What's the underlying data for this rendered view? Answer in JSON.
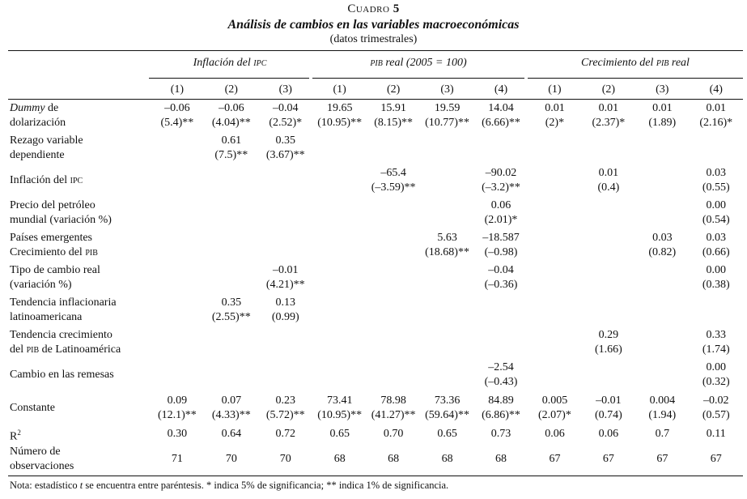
{
  "title": {
    "label": "Cuadro",
    "number": "5",
    "subtitle": "Análisis de cambios en las variables macroeconómicas",
    "frequency": "(datos trimestrales)"
  },
  "groups": [
    {
      "pre": "Inflación del ",
      "sc": "ipc",
      "post": ""
    },
    {
      "pre": "",
      "sc": "pib",
      "post": " real (2005 = 100)"
    },
    {
      "pre": "Crecimiento del ",
      "sc": "pib",
      "post": " real"
    }
  ],
  "columns": [
    "(1)",
    "(2)",
    "(3)",
    "(1)",
    "(2)",
    "(3)",
    "(4)",
    "(1)",
    "(2)",
    "(3)",
    "(4)"
  ],
  "rows": [
    {
      "label1_it": "Dummy",
      "label1": " de",
      "label2": "dolarización",
      "coef": [
        "–0.06",
        "–0.06",
        "–0.04",
        "19.65",
        "15.91",
        "19.59",
        "14.04",
        "0.01",
        "0.01",
        "0.01",
        "0.01"
      ],
      "stat": [
        "(5.4)**",
        "(4.04)**",
        "(2.52)*",
        "(10.95)**",
        "(8.15)**",
        "(10.77)**",
        "(6.66)**",
        "(2)*",
        "(2.37)*",
        "(1.89)",
        "(2.16)*"
      ]
    },
    {
      "label1": "Rezago variable",
      "label2": "dependiente",
      "coef": [
        "",
        "0.61",
        "0.35",
        "",
        "",
        "",
        "",
        "",
        "",
        "",
        ""
      ],
      "stat": [
        "",
        "(7.5)**",
        "(3.67)**",
        "",
        "",
        "",
        "",
        "",
        "",
        "",
        ""
      ]
    },
    {
      "label1": "Inflación del ",
      "label1_sc": "ipc",
      "label2": "",
      "coef": [
        "",
        "",
        "",
        "",
        "–65.4",
        "",
        "–90.02",
        "",
        "0.01",
        "",
        "0.03"
      ],
      "stat": [
        "",
        "",
        "",
        "",
        "(–3.59)**",
        "",
        "(–3.2)**",
        "",
        "(0.4)",
        "",
        "(0.55)"
      ]
    },
    {
      "label1": "Precio del petróleo",
      "label2": "mundial (variación %)",
      "coef": [
        "",
        "",
        "",
        "",
        "",
        "",
        "0.06",
        "",
        "",
        "",
        "0.00"
      ],
      "stat": [
        "",
        "",
        "",
        "",
        "",
        "",
        "(2.01)*",
        "",
        "",
        "",
        "(0.54)"
      ]
    },
    {
      "label1": "Países emergentes",
      "label2": "Crecimiento del ",
      "label2_sc": "pib",
      "coef": [
        "",
        "",
        "",
        "",
        "",
        "5.63",
        "–18.587",
        "",
        "",
        "0.03",
        "0.03"
      ],
      "stat": [
        "",
        "",
        "",
        "",
        "",
        "(18.68)**",
        "(–0.98)",
        "",
        "",
        "(0.82)",
        "(0.66)"
      ]
    },
    {
      "label1": "Tipo de cambio real",
      "label2": "(variación %)",
      "coef": [
        "",
        "",
        "–0.01",
        "",
        "",
        "",
        "–0.04",
        "",
        "",
        "",
        "0.00"
      ],
      "stat": [
        "",
        "",
        "(4.21)**",
        "",
        "",
        "",
        "(–0.36)",
        "",
        "",
        "",
        "(0.38)"
      ]
    },
    {
      "label1": "Tendencia inflacionaria",
      "label2": "latinoamericana",
      "coef": [
        "",
        "0.35",
        "0.13",
        "",
        "",
        "",
        "",
        "",
        "",
        "",
        ""
      ],
      "stat": [
        "",
        "(2.55)**",
        "(0.99)",
        "",
        "",
        "",
        "",
        "",
        "",
        "",
        ""
      ]
    },
    {
      "label1": "Tendencia crecimiento",
      "label2": "del ",
      "label2_sc": "pib",
      "label2_post": " de Latinoamérica",
      "coef": [
        "",
        "",
        "",
        "",
        "",
        "",
        "",
        "",
        "0.29",
        "",
        "0.33"
      ],
      "stat": [
        "",
        "",
        "",
        "",
        "",
        "",
        "",
        "",
        "(1.66)",
        "",
        "(1.74)"
      ]
    },
    {
      "label1": "Cambio en las remesas",
      "label2": "",
      "coef": [
        "",
        "",
        "",
        "",
        "",
        "",
        "–2.54",
        "",
        "",
        "",
        "0.00"
      ],
      "stat": [
        "",
        "",
        "",
        "",
        "",
        "",
        "(–0.43)",
        "",
        "",
        "",
        "(0.32)"
      ]
    },
    {
      "label1": "Constante",
      "label2": "",
      "coef": [
        "0.09",
        "0.07",
        "0.23",
        "73.41",
        "78.98",
        "73.36",
        "84.89",
        "0.005",
        "–0.01",
        "0.004",
        "–0.02"
      ],
      "stat": [
        "(12.1)**",
        "(4.33)**",
        "(5.72)**",
        "(10.95)**",
        "(41.27)**",
        "(59.64)**",
        "(6.86)**",
        "(2.07)*",
        "(0.74)",
        "(1.94)",
        "(0.57)"
      ]
    }
  ],
  "r2": {
    "label": "R",
    "sup": "2",
    "values": [
      "0.30",
      "0.64",
      "0.72",
      "0.65",
      "0.70",
      "0.65",
      "0.73",
      "0.06",
      "0.06",
      "0.7",
      "0.11"
    ]
  },
  "nobs": {
    "label1": "Número de",
    "label2": "observaciones",
    "values": [
      "71",
      "70",
      "70",
      "68",
      "68",
      "68",
      "68",
      "67",
      "67",
      "67",
      "67"
    ]
  },
  "note": {
    "pre": "Nota: estadístico ",
    "t": "t",
    "post": " se encuentra entre paréntesis. * indica 5% de significancia; ** indica 1% de significancia."
  }
}
